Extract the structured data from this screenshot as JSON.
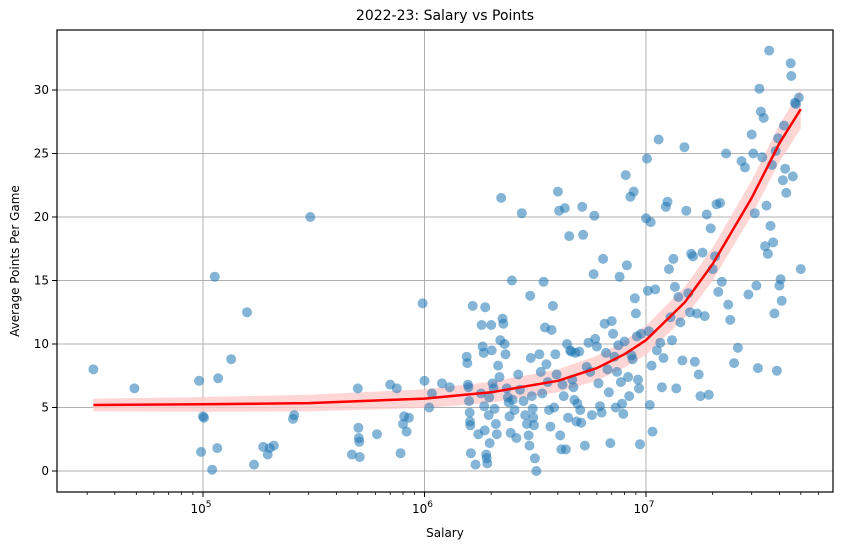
{
  "chart_data": {
    "type": "scatter",
    "title": "2022-23: Salary vs Points",
    "xlabel": "Salary",
    "ylabel": "Average Points Per Game",
    "xscale": "log",
    "xlim": [
      23000,
      70000000
    ],
    "ylim": [
      -1.7,
      34.8
    ],
    "grid": true,
    "x_ticks": [
      {
        "base": "10",
        "exp": "5",
        "value": 100000
      },
      {
        "base": "10",
        "exp": "6",
        "value": 1000000
      },
      {
        "base": "10",
        "exp": "7",
        "value": 10000000
      }
    ],
    "y_ticks": [
      0,
      5,
      10,
      15,
      20,
      25,
      30
    ],
    "point_color": "#1f77b4",
    "point_alpha": 0.55,
    "fit_line": {
      "color": "#ff0000",
      "band_color": "#ffcccc",
      "description": "exponential-like regression fit with confidence band",
      "points": [
        [
          32000,
          5.2
        ],
        [
          100000,
          5.25
        ],
        [
          300000,
          5.35
        ],
        [
          1000000,
          5.7
        ],
        [
          2000000,
          6.2
        ],
        [
          4000000,
          7.1
        ],
        [
          6000000,
          8.1
        ],
        [
          8000000,
          9.2
        ],
        [
          10000000,
          10.3
        ],
        [
          15000000,
          13.3
        ],
        [
          20000000,
          16.3
        ],
        [
          30000000,
          21.5
        ],
        [
          40000000,
          25.8
        ],
        [
          50000000,
          28.5
        ]
      ]
    },
    "points": [
      [
        32000,
        8.0
      ],
      [
        49000,
        6.5
      ],
      [
        96000,
        7.1
      ],
      [
        98000,
        1.5
      ],
      [
        100000,
        4.3
      ],
      [
        101000,
        4.2
      ],
      [
        110000,
        0.1
      ],
      [
        113000,
        15.3
      ],
      [
        116000,
        1.8
      ],
      [
        117000,
        7.3
      ],
      [
        134000,
        8.8
      ],
      [
        158000,
        12.5
      ],
      [
        170000,
        0.5
      ],
      [
        187000,
        1.9
      ],
      [
        196000,
        1.3
      ],
      [
        200000,
        1.8
      ],
      [
        209000,
        2.0
      ],
      [
        255000,
        4.1
      ],
      [
        258000,
        4.4
      ],
      [
        305000,
        20.0
      ],
      [
        470000,
        1.3
      ],
      [
        500000,
        6.5
      ],
      [
        503000,
        3.4
      ],
      [
        505000,
        2.6
      ],
      [
        508000,
        2.3
      ],
      [
        510000,
        1.1
      ],
      [
        610000,
        2.9
      ],
      [
        700000,
        6.8
      ],
      [
        750000,
        6.5
      ],
      [
        780000,
        1.4
      ],
      [
        800000,
        3.7
      ],
      [
        810000,
        4.3
      ],
      [
        830000,
        3.1
      ],
      [
        850000,
        4.2
      ],
      [
        980000,
        13.2
      ],
      [
        1000000,
        7.1
      ],
      [
        1050000,
        5.0
      ],
      [
        1080000,
        6.1
      ],
      [
        1200000,
        6.9
      ],
      [
        1300000,
        6.6
      ],
      [
        1550000,
        9.0
      ],
      [
        1560000,
        8.5
      ],
      [
        1570000,
        6.8
      ],
      [
        1580000,
        6.6
      ],
      [
        1590000,
        5.5
      ],
      [
        1600000,
        4.6
      ],
      [
        1605000,
        3.9
      ],
      [
        1610000,
        3.6
      ],
      [
        1620000,
        1.4
      ],
      [
        1650000,
        13.0
      ],
      [
        1700000,
        0.5
      ],
      [
        1750000,
        2.9
      ],
      [
        1800000,
        6.1
      ],
      [
        1810000,
        11.5
      ],
      [
        1830000,
        9.8
      ],
      [
        1850000,
        9.3
      ],
      [
        1860000,
        5.1
      ],
      [
        1870000,
        3.2
      ],
      [
        1880000,
        12.9
      ],
      [
        1900000,
        1.3
      ],
      [
        1910000,
        1.0
      ],
      [
        1920000,
        0.6
      ],
      [
        1950000,
        4.4
      ],
      [
        1960000,
        5.8
      ],
      [
        1970000,
        2.2
      ],
      [
        2000000,
        11.5
      ],
      [
        2010000,
        9.5
      ],
      [
        2030000,
        6.9
      ],
      [
        2050000,
        6.5
      ],
      [
        2070000,
        4.9
      ],
      [
        2100000,
        3.7
      ],
      [
        2120000,
        2.9
      ],
      [
        2150000,
        8.3
      ],
      [
        2180000,
        7.4
      ],
      [
        2200000,
        10.3
      ],
      [
        2220000,
        21.5
      ],
      [
        2250000,
        12.0
      ],
      [
        2270000,
        11.6
      ],
      [
        2300000,
        10.0
      ],
      [
        2320000,
        9.2
      ],
      [
        2350000,
        6.5
      ],
      [
        2380000,
        5.8
      ],
      [
        2400000,
        5.4
      ],
      [
        2420000,
        4.3
      ],
      [
        2450000,
        3.0
      ],
      [
        2480000,
        15.0
      ],
      [
        2500000,
        5.6
      ],
      [
        2550000,
        4.8
      ],
      [
        2600000,
        2.6
      ],
      [
        2650000,
        7.6
      ],
      [
        2700000,
        6.4
      ],
      [
        2750000,
        20.3
      ],
      [
        2800000,
        5.5
      ],
      [
        2850000,
        4.4
      ],
      [
        2900000,
        3.7
      ],
      [
        2950000,
        2.8
      ],
      [
        2980000,
        2.0
      ],
      [
        3000000,
        13.8
      ],
      [
        3020000,
        8.9
      ],
      [
        3050000,
        5.9
      ],
      [
        3080000,
        4.9
      ],
      [
        3100000,
        4.2
      ],
      [
        3120000,
        3.6
      ],
      [
        3150000,
        1.0
      ],
      [
        3200000,
        0.0
      ],
      [
        3300000,
        9.2
      ],
      [
        3350000,
        7.8
      ],
      [
        3400000,
        6.1
      ],
      [
        3450000,
        14.9
      ],
      [
        3500000,
        11.3
      ],
      [
        3550000,
        8.4
      ],
      [
        3600000,
        7.0
      ],
      [
        3650000,
        4.8
      ],
      [
        3700000,
        3.5
      ],
      [
        3750000,
        11.1
      ],
      [
        3800000,
        13.0
      ],
      [
        3850000,
        5.0
      ],
      [
        3900000,
        9.2
      ],
      [
        3950000,
        7.6
      ],
      [
        4000000,
        22.0
      ],
      [
        4050000,
        20.5
      ],
      [
        4100000,
        2.8
      ],
      [
        4150000,
        1.7
      ],
      [
        4200000,
        6.8
      ],
      [
        4250000,
        5.9
      ],
      [
        4300000,
        20.7
      ],
      [
        4350000,
        1.7
      ],
      [
        4400000,
        10.0
      ],
      [
        4450000,
        4.2
      ],
      [
        4500000,
        18.5
      ],
      [
        4550000,
        9.5
      ],
      [
        4600000,
        9.4
      ],
      [
        4650000,
        7.2
      ],
      [
        4700000,
        6.6
      ],
      [
        4750000,
        5.6
      ],
      [
        4800000,
        9.3
      ],
      [
        4850000,
        3.9
      ],
      [
        4900000,
        5.3
      ],
      [
        5000000,
        9.4
      ],
      [
        5050000,
        4.8
      ],
      [
        5100000,
        3.8
      ],
      [
        5150000,
        20.8
      ],
      [
        5200000,
        18.6
      ],
      [
        5300000,
        2.0
      ],
      [
        5400000,
        8.2
      ],
      [
        5500000,
        10.1
      ],
      [
        5600000,
        7.8
      ],
      [
        5700000,
        4.4
      ],
      [
        5800000,
        15.5
      ],
      [
        5850000,
        20.1
      ],
      [
        5900000,
        10.4
      ],
      [
        6000000,
        9.8
      ],
      [
        6100000,
        6.9
      ],
      [
        6200000,
        5.1
      ],
      [
        6300000,
        4.6
      ],
      [
        6400000,
        16.7
      ],
      [
        6500000,
        11.6
      ],
      [
        6600000,
        9.3
      ],
      [
        6700000,
        8.0
      ],
      [
        6800000,
        6.2
      ],
      [
        6900000,
        2.2
      ],
      [
        7000000,
        11.8
      ],
      [
        7100000,
        10.8
      ],
      [
        7200000,
        9.0
      ],
      [
        7300000,
        5.0
      ],
      [
        7400000,
        7.8
      ],
      [
        7500000,
        9.9
      ],
      [
        7600000,
        15.3
      ],
      [
        7700000,
        7.0
      ],
      [
        7800000,
        5.3
      ],
      [
        7900000,
        4.5
      ],
      [
        8000000,
        10.2
      ],
      [
        8100000,
        23.3
      ],
      [
        8200000,
        16.2
      ],
      [
        8300000,
        7.4
      ],
      [
        8400000,
        5.9
      ],
      [
        8500000,
        21.6
      ],
      [
        8600000,
        9.1
      ],
      [
        8700000,
        8.8
      ],
      [
        8800000,
        22.0
      ],
      [
        8900000,
        13.6
      ],
      [
        9000000,
        12.4
      ],
      [
        9100000,
        10.6
      ],
      [
        9200000,
        7.2
      ],
      [
        9300000,
        6.5
      ],
      [
        9400000,
        2.1
      ],
      [
        9500000,
        10.8
      ],
      [
        10000000,
        19.9
      ],
      [
        10100000,
        24.6
      ],
      [
        10200000,
        14.2
      ],
      [
        10300000,
        11.0
      ],
      [
        10400000,
        5.2
      ],
      [
        10500000,
        19.6
      ],
      [
        10600000,
        8.3
      ],
      [
        10700000,
        3.1
      ],
      [
        11000000,
        14.3
      ],
      [
        11200000,
        9.5
      ],
      [
        11400000,
        26.1
      ],
      [
        11600000,
        10.1
      ],
      [
        11800000,
        6.6
      ],
      [
        12000000,
        8.9
      ],
      [
        12300000,
        20.8
      ],
      [
        12500000,
        21.2
      ],
      [
        12700000,
        15.9
      ],
      [
        12900000,
        12.1
      ],
      [
        13100000,
        10.3
      ],
      [
        13300000,
        16.7
      ],
      [
        13500000,
        14.5
      ],
      [
        13700000,
        6.5
      ],
      [
        14000000,
        13.7
      ],
      [
        14300000,
        11.7
      ],
      [
        14600000,
        8.7
      ],
      [
        14900000,
        25.5
      ],
      [
        15200000,
        20.5
      ],
      [
        15500000,
        14.0
      ],
      [
        15800000,
        12.5
      ],
      [
        16000000,
        17.1
      ],
      [
        16300000,
        16.9
      ],
      [
        16600000,
        8.6
      ],
      [
        17000000,
        12.4
      ],
      [
        17300000,
        7.6
      ],
      [
        17600000,
        5.9
      ],
      [
        18000000,
        17.2
      ],
      [
        18400000,
        12.2
      ],
      [
        18800000,
        20.2
      ],
      [
        19200000,
        6.0
      ],
      [
        19600000,
        19.1
      ],
      [
        20000000,
        15.9
      ],
      [
        20500000,
        16.9
      ],
      [
        20800000,
        21.0
      ],
      [
        21200000,
        14.1
      ],
      [
        21600000,
        21.1
      ],
      [
        22000000,
        14.9
      ],
      [
        23000000,
        25.0
      ],
      [
        23500000,
        13.1
      ],
      [
        24000000,
        11.9
      ],
      [
        25000000,
        8.5
      ],
      [
        26000000,
        9.7
      ],
      [
        27000000,
        24.4
      ],
      [
        28000000,
        23.9
      ],
      [
        29000000,
        13.9
      ],
      [
        30000000,
        26.5
      ],
      [
        30500000,
        25.0
      ],
      [
        31000000,
        20.3
      ],
      [
        31500000,
        14.6
      ],
      [
        32000000,
        8.1
      ],
      [
        32500000,
        30.1
      ],
      [
        33000000,
        28.3
      ],
      [
        33500000,
        24.7
      ],
      [
        34000000,
        27.8
      ],
      [
        34500000,
        17.7
      ],
      [
        35000000,
        20.9
      ],
      [
        35500000,
        17.1
      ],
      [
        36000000,
        33.1
      ],
      [
        36500000,
        19.3
      ],
      [
        37000000,
        24.1
      ],
      [
        37500000,
        18.0
      ],
      [
        38000000,
        12.4
      ],
      [
        38500000,
        25.2
      ],
      [
        39000000,
        7.9
      ],
      [
        39500000,
        26.2
      ],
      [
        40000000,
        14.6
      ],
      [
        40500000,
        15.1
      ],
      [
        41000000,
        13.4
      ],
      [
        41500000,
        22.9
      ],
      [
        42000000,
        27.2
      ],
      [
        42500000,
        23.8
      ],
      [
        43000000,
        21.9
      ],
      [
        45000000,
        32.1
      ],
      [
        45300000,
        31.1
      ],
      [
        46000000,
        23.2
      ],
      [
        47000000,
        29.0
      ],
      [
        47500000,
        28.9
      ],
      [
        49000000,
        29.4
      ],
      [
        50000000,
        15.9
      ]
    ]
  }
}
